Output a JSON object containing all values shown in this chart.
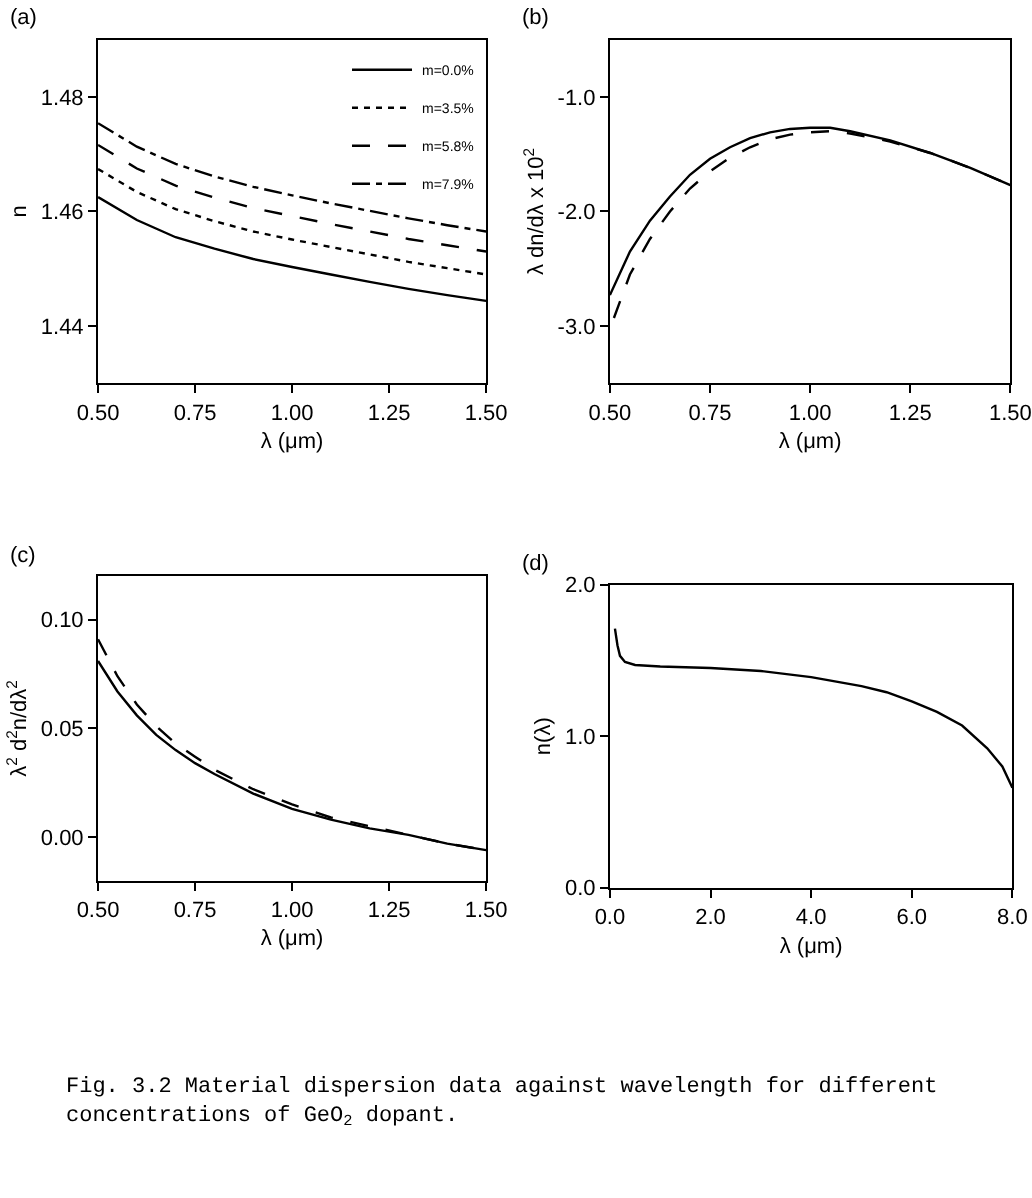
{
  "chart_data": [
    {
      "type": "line",
      "title": "(a)",
      "xlabel": "λ (μm)",
      "ylabel": "n",
      "xlim": [
        0.5,
        1.5
      ],
      "ylim": [
        1.43,
        1.49
      ],
      "xticks": [
        {
          "value": 0.5,
          "label": "0.50"
        },
        {
          "value": 0.75,
          "label": "0.75"
        },
        {
          "value": 1.0,
          "label": "1.00"
        },
        {
          "value": 1.25,
          "label": "1.25"
        },
        {
          "value": 1.5,
          "label": "1.50"
        }
      ],
      "yticks": [
        1.44,
        1.46,
        1.48
      ],
      "legend": "top right",
      "x": [
        0.5,
        0.6,
        0.7,
        0.8,
        0.9,
        1.0,
        1.1,
        1.2,
        1.3,
        1.4,
        1.5
      ],
      "series": [
        {
          "name": "m=0.0%",
          "color": "#000000",
          "line_style": "solid",
          "values": [
            1.4625,
            1.4585,
            1.4555,
            1.4535,
            1.4517,
            1.4503,
            1.449,
            1.4477,
            1.4465,
            1.4454,
            1.4444
          ]
        },
        {
          "name": "m=3.5%",
          "color": "#000000",
          "line_style": "dotted",
          "values": [
            1.4674,
            1.4634,
            1.4604,
            1.4583,
            1.4565,
            1.4551,
            1.4538,
            1.4525,
            1.4512,
            1.4501,
            1.449
          ]
        },
        {
          "name": "m=5.8%",
          "color": "#000000",
          "line_style": "dashed",
          "values": [
            1.4716,
            1.4675,
            1.4645,
            1.4624,
            1.4606,
            1.4592,
            1.4578,
            1.4565,
            1.4552,
            1.4541,
            1.453
          ]
        },
        {
          "name": "m=7.9%",
          "color": "#000000",
          "line_style": "dashdot",
          "values": [
            1.4754,
            1.4713,
            1.4683,
            1.4661,
            1.4643,
            1.4628,
            1.4614,
            1.4601,
            1.4588,
            1.4576,
            1.4565
          ]
        }
      ]
    },
    {
      "type": "line",
      "title": "(b)",
      "xlabel": "λ (μm)",
      "ylabel": "λ dn/dλ x 10$^{2}$",
      "xlim": [
        0.5,
        1.5
      ],
      "ylim": [
        -3.5,
        -0.5
      ],
      "xticks": [
        {
          "value": 0.5,
          "label": "0.50"
        },
        {
          "value": 0.75,
          "label": "0.75"
        },
        {
          "value": 1.0,
          "label": "1.00"
        },
        {
          "value": 1.25,
          "label": "1.25"
        },
        {
          "value": 1.5,
          "label": "1.50"
        }
      ],
      "yticks": [
        {
          "value": -1.0,
          "label": "-1.0"
        },
        {
          "value": -2.0,
          "label": "-2.0"
        },
        {
          "value": -3.0,
          "label": "-3.0"
        }
      ],
      "series": [
        {
          "color": "#000000",
          "line_style": "solid",
          "x": [
            0.5,
            0.55,
            0.6,
            0.65,
            0.7,
            0.75,
            0.8,
            0.85,
            0.9,
            0.95,
            1.0,
            1.05,
            1.1,
            1.2,
            1.3,
            1.4,
            1.5
          ],
          "values": [
            -2.73,
            -2.35,
            -2.08,
            -1.87,
            -1.68,
            -1.54,
            -1.44,
            -1.36,
            -1.31,
            -1.28,
            -1.27,
            -1.27,
            -1.3,
            -1.38,
            -1.49,
            -1.62,
            -1.77
          ]
        },
        {
          "color": "#000000",
          "line_style": "dashed",
          "x": [
            0.51,
            0.55,
            0.6,
            0.65,
            0.7,
            0.75,
            0.8,
            0.85,
            0.9,
            0.95,
            1.0,
            1.05,
            1.1,
            1.2,
            1.3,
            1.4,
            1.5
          ],
          "values": [
            -2.93,
            -2.55,
            -2.24,
            -2.0,
            -1.8,
            -1.65,
            -1.53,
            -1.44,
            -1.37,
            -1.33,
            -1.31,
            -1.3,
            -1.32,
            -1.39,
            -1.49,
            -1.62,
            -1.77
          ]
        }
      ]
    },
    {
      "type": "line",
      "title": "(c)",
      "xlabel": "λ (μm)",
      "ylabel": "λ$^{2}$ d$^{2}$n/dλ$^{2}$",
      "xlim": [
        0.5,
        1.5
      ],
      "ylim": [
        -0.02,
        0.12
      ],
      "xticks": [
        {
          "value": 0.5,
          "label": "0.50"
        },
        {
          "value": 0.75,
          "label": "0.75"
        },
        {
          "value": 1.0,
          "label": "1.00"
        },
        {
          "value": 1.25,
          "label": "1.25"
        },
        {
          "value": 1.5,
          "label": "1.50"
        }
      ],
      "yticks": [
        {
          "value": 0.0,
          "label": "0.00"
        },
        {
          "value": 0.05,
          "label": "0.05"
        },
        {
          "value": 0.1,
          "label": "0.10"
        }
      ],
      "x": [
        0.5,
        0.55,
        0.6,
        0.65,
        0.7,
        0.75,
        0.8,
        0.9,
        1.0,
        1.1,
        1.2,
        1.3,
        1.4,
        1.5
      ],
      "series": [
        {
          "color": "#000000",
          "line_style": "solid",
          "values": [
            0.081,
            0.067,
            0.056,
            0.047,
            0.04,
            0.034,
            0.029,
            0.02,
            0.013,
            0.008,
            0.004,
            0.001,
            -0.003,
            -0.006
          ]
        },
        {
          "color": "#000000",
          "line_style": "dashed",
          "values": [
            0.091,
            0.074,
            0.061,
            0.051,
            0.043,
            0.037,
            0.031,
            0.022,
            0.015,
            0.009,
            0.005,
            0.001,
            -0.003,
            -0.006
          ]
        }
      ]
    },
    {
      "type": "line",
      "title": "(d)",
      "xlabel": "λ (μm)",
      "ylabel": "n(λ)",
      "xlim": [
        0,
        8
      ],
      "ylim": [
        0,
        2
      ],
      "xticks": [
        {
          "value": 0,
          "label": "0.0"
        },
        {
          "value": 2,
          "label": "2.0"
        },
        {
          "value": 4,
          "label": "4.0"
        },
        {
          "value": 6,
          "label": "6.0"
        },
        {
          "value": 8,
          "label": "8.0"
        }
      ],
      "yticks": [
        {
          "value": 0,
          "label": "0.0"
        },
        {
          "value": 1,
          "label": "1.0"
        },
        {
          "value": 2,
          "label": "2.0"
        }
      ],
      "x": [
        0.1,
        0.15,
        0.2,
        0.3,
        0.5,
        1,
        2,
        3,
        4,
        5,
        5.5,
        6,
        6.5,
        7,
        7.5,
        7.8,
        8.0
      ],
      "series": [
        {
          "color": "#000000",
          "line_style": "solid",
          "values": [
            1.71,
            1.6,
            1.53,
            1.49,
            1.47,
            1.46,
            1.45,
            1.43,
            1.39,
            1.33,
            1.29,
            1.23,
            1.16,
            1.07,
            0.92,
            0.8,
            0.66
          ]
        }
      ],
      "annotations": [
        "Fig. 3.2 Material dispersion data against wavelength for different concentrations of GeO$_{2}$ dopant."
      ]
    }
  ]
}
